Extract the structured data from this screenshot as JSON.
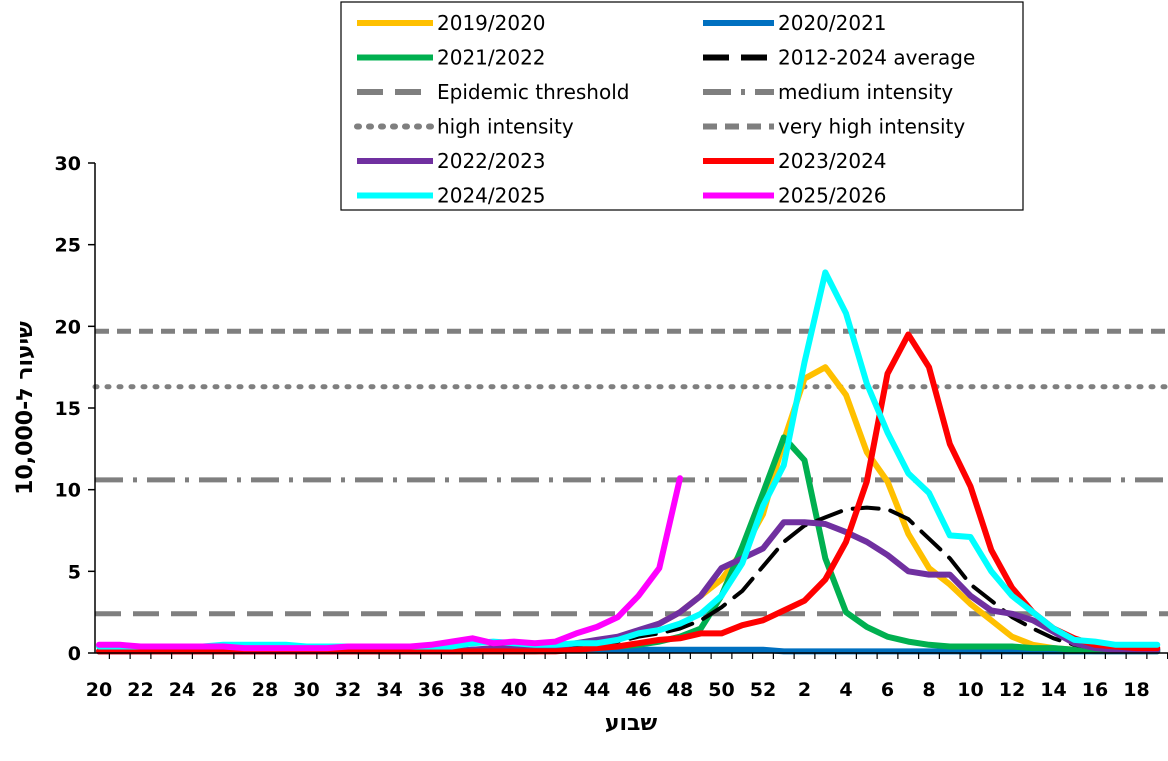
{
  "chart_data": {
    "type": "line",
    "xlabel": "שבוע",
    "ylabel": "שיעור ל-10,000",
    "ylim": [
      0,
      30
    ],
    "yticks": [
      0,
      5,
      10,
      15,
      20,
      25,
      30
    ],
    "weeks": [
      20,
      21,
      22,
      23,
      24,
      25,
      26,
      27,
      28,
      29,
      30,
      31,
      32,
      33,
      34,
      35,
      36,
      37,
      38,
      39,
      40,
      41,
      42,
      43,
      44,
      45,
      46,
      47,
      48,
      49,
      50,
      51,
      52,
      1,
      2,
      3,
      4,
      5,
      6,
      7,
      8,
      9,
      10,
      11,
      12,
      13,
      14,
      15,
      16,
      17,
      18,
      19
    ],
    "x_tick_labels": [
      "20",
      "22",
      "24",
      "26",
      "28",
      "30",
      "32",
      "34",
      "36",
      "38",
      "40",
      "42",
      "44",
      "46",
      "48",
      "50",
      "52",
      "2",
      "4",
      "6",
      "8",
      "10",
      "12",
      "14",
      "16",
      "18"
    ],
    "legend_position": "top-center",
    "grid": false,
    "series": [
      {
        "name": "2019/2020",
        "color": "#ffc000",
        "style": "solid",
        "values": [
          0.1,
          0.1,
          0.1,
          0.1,
          0.1,
          0.1,
          0.1,
          0.1,
          0.1,
          0.1,
          0.1,
          0.1,
          0.1,
          0.1,
          0.1,
          0.1,
          0.1,
          0.1,
          0.1,
          0.2,
          0.2,
          0.2,
          0.3,
          0.4,
          0.6,
          0.9,
          1.3,
          1.8,
          2.5,
          3.5,
          4.5,
          6.2,
          8.5,
          13.0,
          16.8,
          17.5,
          15.8,
          12.3,
          10.5,
          7.3,
          5.2,
          4.2,
          3.0,
          2.0,
          1.0,
          0.5,
          0.3,
          0.2,
          0.1,
          0.1,
          0.1,
          0.1
        ]
      },
      {
        "name": "2020/2021",
        "color": "#0070c0",
        "style": "solid",
        "values": [
          0.1,
          0.1,
          0.1,
          0.1,
          0.1,
          0.1,
          0.1,
          0.1,
          0.1,
          0.1,
          0.1,
          0.1,
          0.1,
          0.1,
          0.1,
          0.1,
          0.1,
          0.1,
          0.2,
          0.2,
          0.2,
          0.2,
          0.2,
          0.2,
          0.2,
          0.2,
          0.2,
          0.2,
          0.2,
          0.2,
          0.2,
          0.2,
          0.2,
          0.1,
          0.1,
          0.1,
          0.1,
          0.1,
          0.1,
          0.1,
          0.1,
          0.1,
          0.1,
          0.1,
          0.1,
          0.1,
          0.1,
          0.1,
          0.1,
          0.1,
          0.1,
          0.1
        ]
      },
      {
        "name": "2021/2022",
        "color": "#00b050",
        "style": "solid",
        "values": [
          0.1,
          0.1,
          0.1,
          0.1,
          0.1,
          0.1,
          0.1,
          0.1,
          0.1,
          0.1,
          0.1,
          0.1,
          0.1,
          0.1,
          0.1,
          0.1,
          0.1,
          0.1,
          0.1,
          0.1,
          0.1,
          0.1,
          0.2,
          0.2,
          0.3,
          0.4,
          0.5,
          0.7,
          1.0,
          1.5,
          3.5,
          6.5,
          9.8,
          13.2,
          11.8,
          5.8,
          2.5,
          1.6,
          1.0,
          0.7,
          0.5,
          0.4,
          0.4,
          0.4,
          0.4,
          0.3,
          0.3,
          0.2,
          0.2,
          0.2,
          0.2,
          0.2
        ]
      },
      {
        "name": "2012-2024 average",
        "color": "#000000",
        "style": "dash-long",
        "values": [
          0.2,
          0.2,
          0.2,
          0.2,
          0.2,
          0.2,
          0.2,
          0.2,
          0.2,
          0.2,
          0.2,
          0.2,
          0.2,
          0.2,
          0.2,
          0.2,
          0.2,
          0.2,
          0.2,
          0.2,
          0.2,
          0.2,
          0.3,
          0.4,
          0.5,
          0.7,
          1.0,
          1.2,
          1.5,
          2.0,
          2.8,
          3.8,
          5.3,
          6.8,
          7.8,
          8.3,
          8.8,
          8.9,
          8.8,
          8.2,
          7.0,
          5.8,
          4.2,
          3.2,
          2.2,
          1.5,
          0.9,
          0.5,
          0.3,
          0.2,
          0.2,
          0.2
        ]
      },
      {
        "name": "Epidemic threshold",
        "color": "#7f7f7f",
        "style": "dash-long",
        "values": [
          2.4
        ]
      },
      {
        "name": "medium intensity",
        "color": "#7f7f7f",
        "style": "dash-dot",
        "values": [
          10.6
        ]
      },
      {
        "name": "high intensity",
        "color": "#7f7f7f",
        "style": "dot",
        "values": [
          16.3
        ]
      },
      {
        "name": "very high intensity",
        "color": "#7f7f7f",
        "style": "dash-short",
        "values": [
          19.7
        ]
      },
      {
        "name": "2022/2023",
        "color": "#7030a0",
        "style": "solid",
        "values": [
          0.1,
          0.1,
          0.1,
          0.1,
          0.1,
          0.1,
          0.1,
          0.1,
          0.1,
          0.1,
          0.1,
          0.1,
          0.1,
          0.1,
          0.1,
          0.1,
          0.1,
          0.1,
          0.2,
          0.3,
          0.3,
          0.3,
          0.4,
          0.6,
          0.8,
          1.0,
          1.4,
          1.8,
          2.5,
          3.5,
          5.2,
          5.8,
          6.4,
          8.0,
          8.0,
          7.9,
          7.4,
          6.8,
          6.0,
          5.0,
          4.8,
          4.8,
          3.5,
          2.6,
          2.4,
          2.0,
          1.3,
          0.6,
          0.3,
          0.2,
          0.2,
          0.2
        ]
      },
      {
        "name": "2023/2024",
        "color": "#ff0000",
        "style": "solid",
        "values": [
          0.1,
          0.1,
          0.1,
          0.1,
          0.1,
          0.1,
          0.1,
          0.1,
          0.1,
          0.1,
          0.1,
          0.1,
          0.1,
          0.1,
          0.1,
          0.1,
          0.1,
          0.1,
          0.1,
          0.1,
          0.1,
          0.1,
          0.1,
          0.2,
          0.3,
          0.4,
          0.6,
          0.8,
          0.9,
          1.2,
          1.2,
          1.7,
          2.0,
          2.6,
          3.2,
          4.5,
          6.8,
          10.5,
          17.1,
          19.5,
          17.5,
          12.8,
          10.2,
          6.3,
          4.0,
          2.5,
          1.5,
          0.9,
          0.5,
          0.4,
          0.3,
          0.3
        ]
      },
      {
        "name": "2024/2025",
        "color": "#00ffff",
        "style": "solid",
        "values": [
          0.4,
          0.4,
          0.4,
          0.4,
          0.4,
          0.4,
          0.5,
          0.5,
          0.5,
          0.5,
          0.4,
          0.4,
          0.4,
          0.4,
          0.4,
          0.4,
          0.4,
          0.4,
          0.6,
          0.7,
          0.6,
          0.5,
          0.5,
          0.6,
          0.6,
          0.8,
          1.2,
          1.4,
          1.8,
          2.4,
          3.5,
          5.5,
          9.0,
          11.5,
          17.8,
          23.3,
          20.8,
          16.5,
          13.5,
          11.0,
          9.8,
          7.2,
          7.1,
          5.0,
          3.5,
          2.5,
          1.5,
          0.8,
          0.7,
          0.5,
          0.5,
          0.5
        ]
      },
      {
        "name": "2025/2026",
        "color": "#ff00ff",
        "style": "solid",
        "values": [
          0.5,
          0.5,
          0.4,
          0.4,
          0.4,
          0.4,
          0.4,
          0.3,
          0.3,
          0.3,
          0.3,
          0.3,
          0.4,
          0.4,
          0.4,
          0.4,
          0.5,
          0.7,
          0.9,
          0.6,
          0.7,
          0.6,
          0.7,
          1.2,
          1.6,
          2.2,
          3.5,
          5.2,
          10.7
        ]
      }
    ]
  }
}
